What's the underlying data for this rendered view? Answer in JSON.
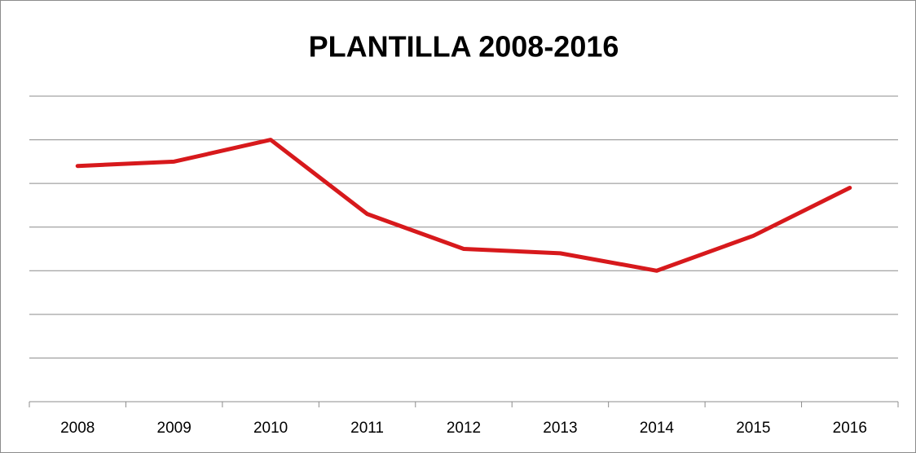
{
  "chart_data": {
    "type": "line",
    "title": "PLANTILLA 2008-2016",
    "categories": [
      "2008",
      "2009",
      "2010",
      "2011",
      "2012",
      "2013",
      "2014",
      "2015",
      "2016"
    ],
    "series": [
      {
        "color": "#d7191c",
        "values": [
          5.4,
          5.5,
          6.0,
          4.3,
          3.5,
          3.4,
          3.0,
          3.8,
          4.9
        ]
      }
    ],
    "ylim": [
      0,
      7
    ],
    "yticks": [
      1,
      2,
      3,
      4,
      5,
      6,
      7
    ],
    "grid": true
  }
}
